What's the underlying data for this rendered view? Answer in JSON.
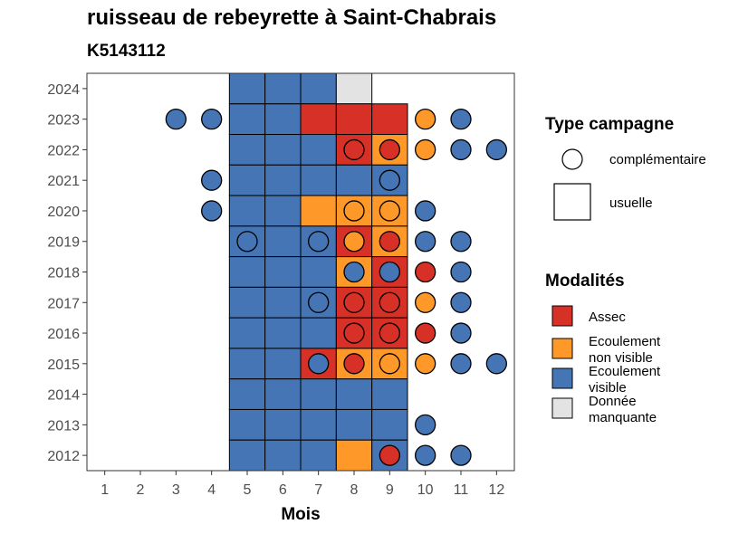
{
  "chart_data": {
    "type": "heatmap",
    "title": "ruisseau de rebeyrette à Saint-Chabrais",
    "subtitle": "K5143112",
    "xlabel": "Mois",
    "ylabel": "",
    "x_ticks": [
      1,
      2,
      3,
      4,
      5,
      6,
      7,
      8,
      9,
      10,
      11,
      12
    ],
    "y_ticks": [
      2012,
      2013,
      2014,
      2015,
      2016,
      2017,
      2018,
      2019,
      2020,
      2021,
      2022,
      2023,
      2024
    ],
    "xlim": [
      0.5,
      12.5
    ],
    "ylim": [
      2011.5,
      2024.5
    ],
    "grid": false,
    "legend_position": "right",
    "colors": {
      "Assec": "#d73027",
      "Ecoulement non visible": "#fe9929",
      "Ecoulement visible": "#4575b4",
      "Donnée manquante": "#e3e3e3"
    },
    "legend_type": {
      "title": "Type campagne",
      "items": [
        {
          "label": "complémentaire",
          "shape": "circle"
        },
        {
          "label": "usuelle",
          "shape": "square"
        }
      ]
    },
    "legend_modalites": {
      "title": "Modalités",
      "items": [
        {
          "label": "Assec",
          "key": "Assec",
          "lines": [
            "Assec"
          ]
        },
        {
          "label": "Ecoulement non visible",
          "key": "Ecoulement non visible",
          "lines": [
            "Ecoulement",
            "non visible"
          ]
        },
        {
          "label": "Ecoulement visible",
          "key": "Ecoulement visible",
          "lines": [
            "Ecoulement",
            "visible"
          ]
        },
        {
          "label": "Donnée manquante",
          "key": "Donnée manquante",
          "lines": [
            "Donnée",
            "manquante"
          ]
        }
      ]
    },
    "usuelle": [
      {
        "year": 2024,
        "month": 5,
        "value": "Ecoulement visible"
      },
      {
        "year": 2024,
        "month": 6,
        "value": "Ecoulement visible"
      },
      {
        "year": 2024,
        "month": 7,
        "value": "Ecoulement visible"
      },
      {
        "year": 2024,
        "month": 8,
        "value": "Donnée manquante"
      },
      {
        "year": 2023,
        "month": 5,
        "value": "Ecoulement visible"
      },
      {
        "year": 2023,
        "month": 6,
        "value": "Ecoulement visible"
      },
      {
        "year": 2023,
        "month": 7,
        "value": "Assec"
      },
      {
        "year": 2023,
        "month": 8,
        "value": "Assec"
      },
      {
        "year": 2023,
        "month": 9,
        "value": "Assec"
      },
      {
        "year": 2022,
        "month": 5,
        "value": "Ecoulement visible"
      },
      {
        "year": 2022,
        "month": 6,
        "value": "Ecoulement visible"
      },
      {
        "year": 2022,
        "month": 7,
        "value": "Ecoulement visible"
      },
      {
        "year": 2022,
        "month": 8,
        "value": "Assec"
      },
      {
        "year": 2022,
        "month": 9,
        "value": "Ecoulement non visible"
      },
      {
        "year": 2021,
        "month": 5,
        "value": "Ecoulement visible"
      },
      {
        "year": 2021,
        "month": 6,
        "value": "Ecoulement visible"
      },
      {
        "year": 2021,
        "month": 7,
        "value": "Ecoulement visible"
      },
      {
        "year": 2021,
        "month": 8,
        "value": "Ecoulement visible"
      },
      {
        "year": 2021,
        "month": 9,
        "value": "Ecoulement visible"
      },
      {
        "year": 2020,
        "month": 5,
        "value": "Ecoulement visible"
      },
      {
        "year": 2020,
        "month": 6,
        "value": "Ecoulement visible"
      },
      {
        "year": 2020,
        "month": 7,
        "value": "Ecoulement non visible"
      },
      {
        "year": 2020,
        "month": 8,
        "value": "Ecoulement non visible"
      },
      {
        "year": 2020,
        "month": 9,
        "value": "Ecoulement non visible"
      },
      {
        "year": 2019,
        "month": 5,
        "value": "Ecoulement visible"
      },
      {
        "year": 2019,
        "month": 6,
        "value": "Ecoulement visible"
      },
      {
        "year": 2019,
        "month": 7,
        "value": "Ecoulement visible"
      },
      {
        "year": 2019,
        "month": 8,
        "value": "Assec"
      },
      {
        "year": 2019,
        "month": 9,
        "value": "Ecoulement non visible"
      },
      {
        "year": 2018,
        "month": 5,
        "value": "Ecoulement visible"
      },
      {
        "year": 2018,
        "month": 6,
        "value": "Ecoulement visible"
      },
      {
        "year": 2018,
        "month": 7,
        "value": "Ecoulement visible"
      },
      {
        "year": 2018,
        "month": 8,
        "value": "Ecoulement non visible"
      },
      {
        "year": 2018,
        "month": 9,
        "value": "Assec"
      },
      {
        "year": 2017,
        "month": 5,
        "value": "Ecoulement visible"
      },
      {
        "year": 2017,
        "month": 6,
        "value": "Ecoulement visible"
      },
      {
        "year": 2017,
        "month": 7,
        "value": "Ecoulement visible"
      },
      {
        "year": 2017,
        "month": 8,
        "value": "Assec"
      },
      {
        "year": 2017,
        "month": 9,
        "value": "Assec"
      },
      {
        "year": 2016,
        "month": 5,
        "value": "Ecoulement visible"
      },
      {
        "year": 2016,
        "month": 6,
        "value": "Ecoulement visible"
      },
      {
        "year": 2016,
        "month": 7,
        "value": "Ecoulement visible"
      },
      {
        "year": 2016,
        "month": 8,
        "value": "Assec"
      },
      {
        "year": 2016,
        "month": 9,
        "value": "Assec"
      },
      {
        "year": 2015,
        "month": 5,
        "value": "Ecoulement visible"
      },
      {
        "year": 2015,
        "month": 6,
        "value": "Ecoulement visible"
      },
      {
        "year": 2015,
        "month": 7,
        "value": "Assec"
      },
      {
        "year": 2015,
        "month": 8,
        "value": "Ecoulement non visible"
      },
      {
        "year": 2015,
        "month": 9,
        "value": "Ecoulement non visible"
      },
      {
        "year": 2014,
        "month": 5,
        "value": "Ecoulement visible"
      },
      {
        "year": 2014,
        "month": 6,
        "value": "Ecoulement visible"
      },
      {
        "year": 2014,
        "month": 7,
        "value": "Ecoulement visible"
      },
      {
        "year": 2014,
        "month": 8,
        "value": "Ecoulement visible"
      },
      {
        "year": 2014,
        "month": 9,
        "value": "Ecoulement visible"
      },
      {
        "year": 2013,
        "month": 5,
        "value": "Ecoulement visible"
      },
      {
        "year": 2013,
        "month": 6,
        "value": "Ecoulement visible"
      },
      {
        "year": 2013,
        "month": 7,
        "value": "Ecoulement visible"
      },
      {
        "year": 2013,
        "month": 8,
        "value": "Ecoulement visible"
      },
      {
        "year": 2013,
        "month": 9,
        "value": "Ecoulement visible"
      },
      {
        "year": 2012,
        "month": 5,
        "value": "Ecoulement visible"
      },
      {
        "year": 2012,
        "month": 6,
        "value": "Ecoulement visible"
      },
      {
        "year": 2012,
        "month": 7,
        "value": "Ecoulement visible"
      },
      {
        "year": 2012,
        "month": 8,
        "value": "Ecoulement non visible"
      },
      {
        "year": 2012,
        "month": 9,
        "value": "Ecoulement visible"
      }
    ],
    "complementaire": [
      {
        "year": 2023,
        "month": 3,
        "value": "Ecoulement visible"
      },
      {
        "year": 2023,
        "month": 4,
        "value": "Ecoulement visible"
      },
      {
        "year": 2023,
        "month": 10,
        "value": "Ecoulement non visible"
      },
      {
        "year": 2023,
        "month": 11,
        "value": "Ecoulement visible"
      },
      {
        "year": 2022,
        "month": 8,
        "value": "Assec"
      },
      {
        "year": 2022,
        "month": 9,
        "value": "Assec"
      },
      {
        "year": 2022,
        "month": 10,
        "value": "Ecoulement non visible"
      },
      {
        "year": 2022,
        "month": 11,
        "value": "Ecoulement visible"
      },
      {
        "year": 2022,
        "month": 12,
        "value": "Ecoulement visible"
      },
      {
        "year": 2021,
        "month": 4,
        "value": "Ecoulement visible"
      },
      {
        "year": 2021,
        "month": 9,
        "value": "Ecoulement visible"
      },
      {
        "year": 2020,
        "month": 4,
        "value": "Ecoulement visible"
      },
      {
        "year": 2020,
        "month": 8,
        "value": "Ecoulement non visible"
      },
      {
        "year": 2020,
        "month": 9,
        "value": "Ecoulement non visible"
      },
      {
        "year": 2020,
        "month": 10,
        "value": "Ecoulement visible"
      },
      {
        "year": 2019,
        "month": 5,
        "value": "Ecoulement visible"
      },
      {
        "year": 2019,
        "month": 7,
        "value": "Ecoulement visible"
      },
      {
        "year": 2019,
        "month": 8,
        "value": "Ecoulement non visible"
      },
      {
        "year": 2019,
        "month": 9,
        "value": "Assec"
      },
      {
        "year": 2019,
        "month": 10,
        "value": "Ecoulement visible"
      },
      {
        "year": 2019,
        "month": 11,
        "value": "Ecoulement visible"
      },
      {
        "year": 2018,
        "month": 8,
        "value": "Ecoulement visible"
      },
      {
        "year": 2018,
        "month": 9,
        "value": "Ecoulement visible"
      },
      {
        "year": 2018,
        "month": 10,
        "value": "Assec"
      },
      {
        "year": 2018,
        "month": 11,
        "value": "Ecoulement visible"
      },
      {
        "year": 2017,
        "month": 7,
        "value": "Ecoulement visible"
      },
      {
        "year": 2017,
        "month": 8,
        "value": "Assec"
      },
      {
        "year": 2017,
        "month": 9,
        "value": "Assec"
      },
      {
        "year": 2017,
        "month": 10,
        "value": "Ecoulement non visible"
      },
      {
        "year": 2017,
        "month": 11,
        "value": "Ecoulement visible"
      },
      {
        "year": 2016,
        "month": 8,
        "value": "Assec"
      },
      {
        "year": 2016,
        "month": 9,
        "value": "Assec"
      },
      {
        "year": 2016,
        "month": 10,
        "value": "Assec"
      },
      {
        "year": 2016,
        "month": 11,
        "value": "Ecoulement visible"
      },
      {
        "year": 2015,
        "month": 7,
        "value": "Ecoulement visible"
      },
      {
        "year": 2015,
        "month": 8,
        "value": "Assec"
      },
      {
        "year": 2015,
        "month": 9,
        "value": "Ecoulement non visible"
      },
      {
        "year": 2015,
        "month": 10,
        "value": "Ecoulement non visible"
      },
      {
        "year": 2015,
        "month": 11,
        "value": "Ecoulement visible"
      },
      {
        "year": 2015,
        "month": 12,
        "value": "Ecoulement visible"
      },
      {
        "year": 2013,
        "month": 10,
        "value": "Ecoulement visible"
      },
      {
        "year": 2012,
        "month": 9,
        "value": "Assec"
      },
      {
        "year": 2012,
        "month": 10,
        "value": "Ecoulement visible"
      },
      {
        "year": 2012,
        "month": 11,
        "value": "Ecoulement visible"
      }
    ]
  }
}
